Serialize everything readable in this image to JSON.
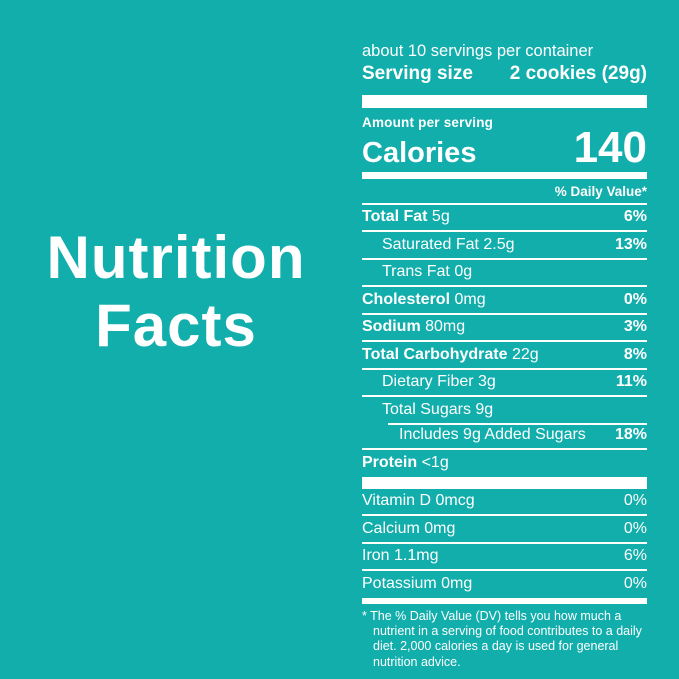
{
  "colors": {
    "background": "#11AEAC",
    "text": "#FFFFFF"
  },
  "title": {
    "line1": "Nutrition",
    "line2": "Facts"
  },
  "panel": {
    "servings_per_container": "about 10 servings per container",
    "serving_size_label": "Serving size",
    "serving_size_value": "2 cookies (29g)",
    "amount_per_serving": "Amount per serving",
    "calories_label": "Calories",
    "calories_value": "140",
    "daily_value_header": "% Daily Value*",
    "rows": [
      {
        "name": "Total Fat",
        "amount": "5g",
        "dv": "6%",
        "bold": true,
        "dv_bold": true,
        "indent": 0,
        "divider": "none"
      },
      {
        "name": "Saturated Fat",
        "amount": "2.5g",
        "dv": "13%",
        "bold": false,
        "dv_bold": true,
        "indent": 1,
        "divider": "full"
      },
      {
        "name": "Trans Fat",
        "amount": "0g",
        "dv": "",
        "bold": false,
        "dv_bold": false,
        "indent": 1,
        "divider": "full"
      },
      {
        "name": "Cholesterol",
        "amount": "0mg",
        "dv": "0%",
        "bold": true,
        "dv_bold": true,
        "indent": 0,
        "divider": "full"
      },
      {
        "name": "Sodium",
        "amount": "80mg",
        "dv": "3%",
        "bold": true,
        "dv_bold": true,
        "indent": 0,
        "divider": "full"
      },
      {
        "name": "Total Carbohydrate",
        "amount": "22g",
        "dv": "8%",
        "bold": true,
        "dv_bold": true,
        "indent": 0,
        "divider": "full"
      },
      {
        "name": "Dietary Fiber",
        "amount": "3g",
        "dv": "11%",
        "bold": false,
        "dv_bold": true,
        "indent": 1,
        "divider": "full"
      },
      {
        "name": "Total Sugars",
        "amount": "9g",
        "dv": "",
        "bold": false,
        "dv_bold": false,
        "indent": 1,
        "divider": "full"
      },
      {
        "name": "Includes 9g Added Sugars",
        "amount": "",
        "dv": "18%",
        "bold": false,
        "dv_bold": true,
        "indent": 2,
        "divider": "inset"
      },
      {
        "name": "Protein",
        "amount": "<1g",
        "dv": "",
        "bold": true,
        "dv_bold": false,
        "indent": 0,
        "divider": "full"
      }
    ],
    "vitamin_rows": [
      {
        "name": "Vitamin D",
        "amount": "0mcg",
        "dv": "0%",
        "bold": false,
        "dv_bold": false,
        "indent": 0,
        "divider": "none"
      },
      {
        "name": "Calcium",
        "amount": "0mg",
        "dv": "0%",
        "bold": false,
        "dv_bold": false,
        "indent": 0,
        "divider": "full"
      },
      {
        "name": "Iron",
        "amount": "1.1mg",
        "dv": "6%",
        "bold": false,
        "dv_bold": false,
        "indent": 0,
        "divider": "full"
      },
      {
        "name": "Potassium",
        "amount": "0mg",
        "dv": "0%",
        "bold": false,
        "dv_bold": false,
        "indent": 0,
        "divider": "full"
      }
    ],
    "footnote": "* The % Daily Value (DV) tells you how much a nutrient in a serving of food contributes to a daily diet. 2,000 calories a day is used for general nutrition advice."
  }
}
